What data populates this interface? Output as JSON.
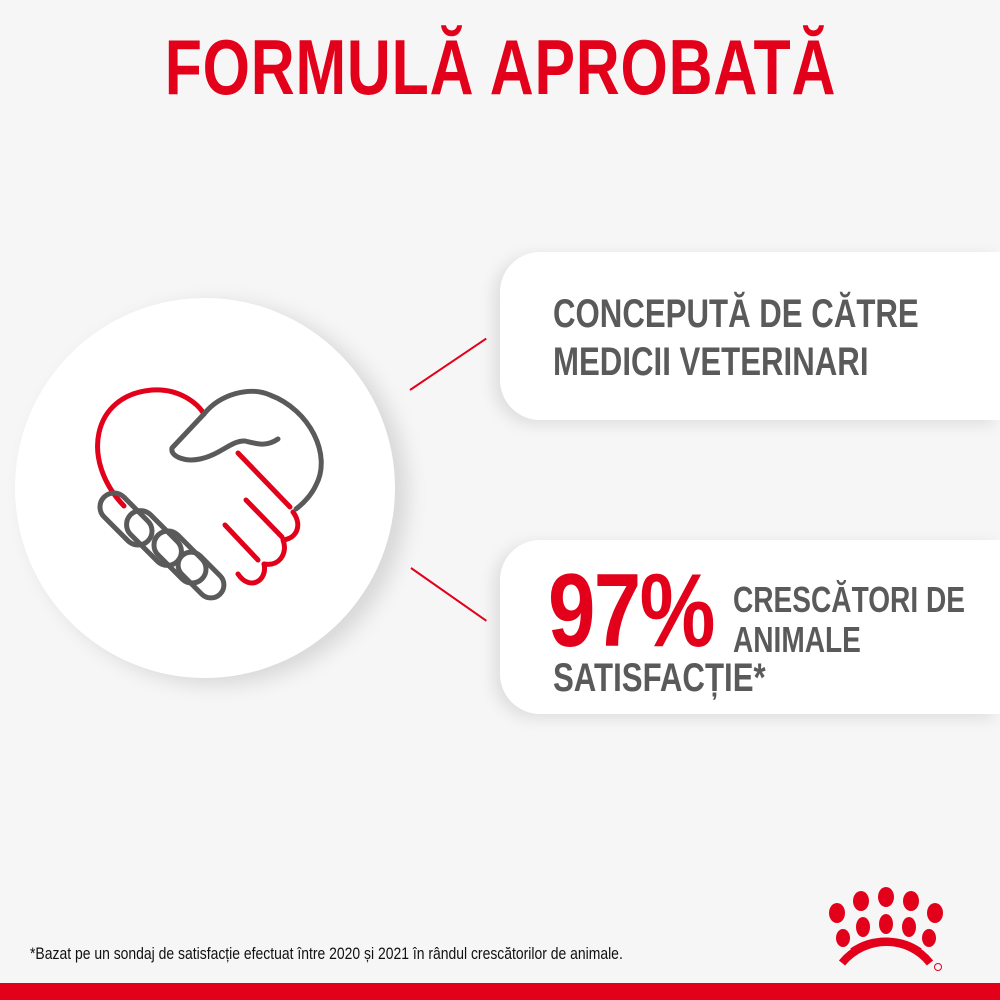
{
  "title": "FORMULĂ APROBATĂ",
  "card1": {
    "text_line1": "CONCEPUTĂ DE CĂTRE",
    "text_line2": "MEDICII VETERINARI"
  },
  "card2": {
    "percent": "97%",
    "text_line1": "CRESCĂTORI DE",
    "text_line2": "ANIMALE",
    "text_line3": "SATISFACȚIE*"
  },
  "footnote": "*Bazat pe un sondaj de satisfacție efectuat între 2020 și 2021 în rândul crescătorilor de animale.",
  "icons": {
    "main": "handshake-heart-icon",
    "logo": "royal-canin-crown-logo"
  },
  "colors": {
    "accent": "#e2001a",
    "text": "#5a5a5a",
    "background": "#f6f6f6"
  }
}
